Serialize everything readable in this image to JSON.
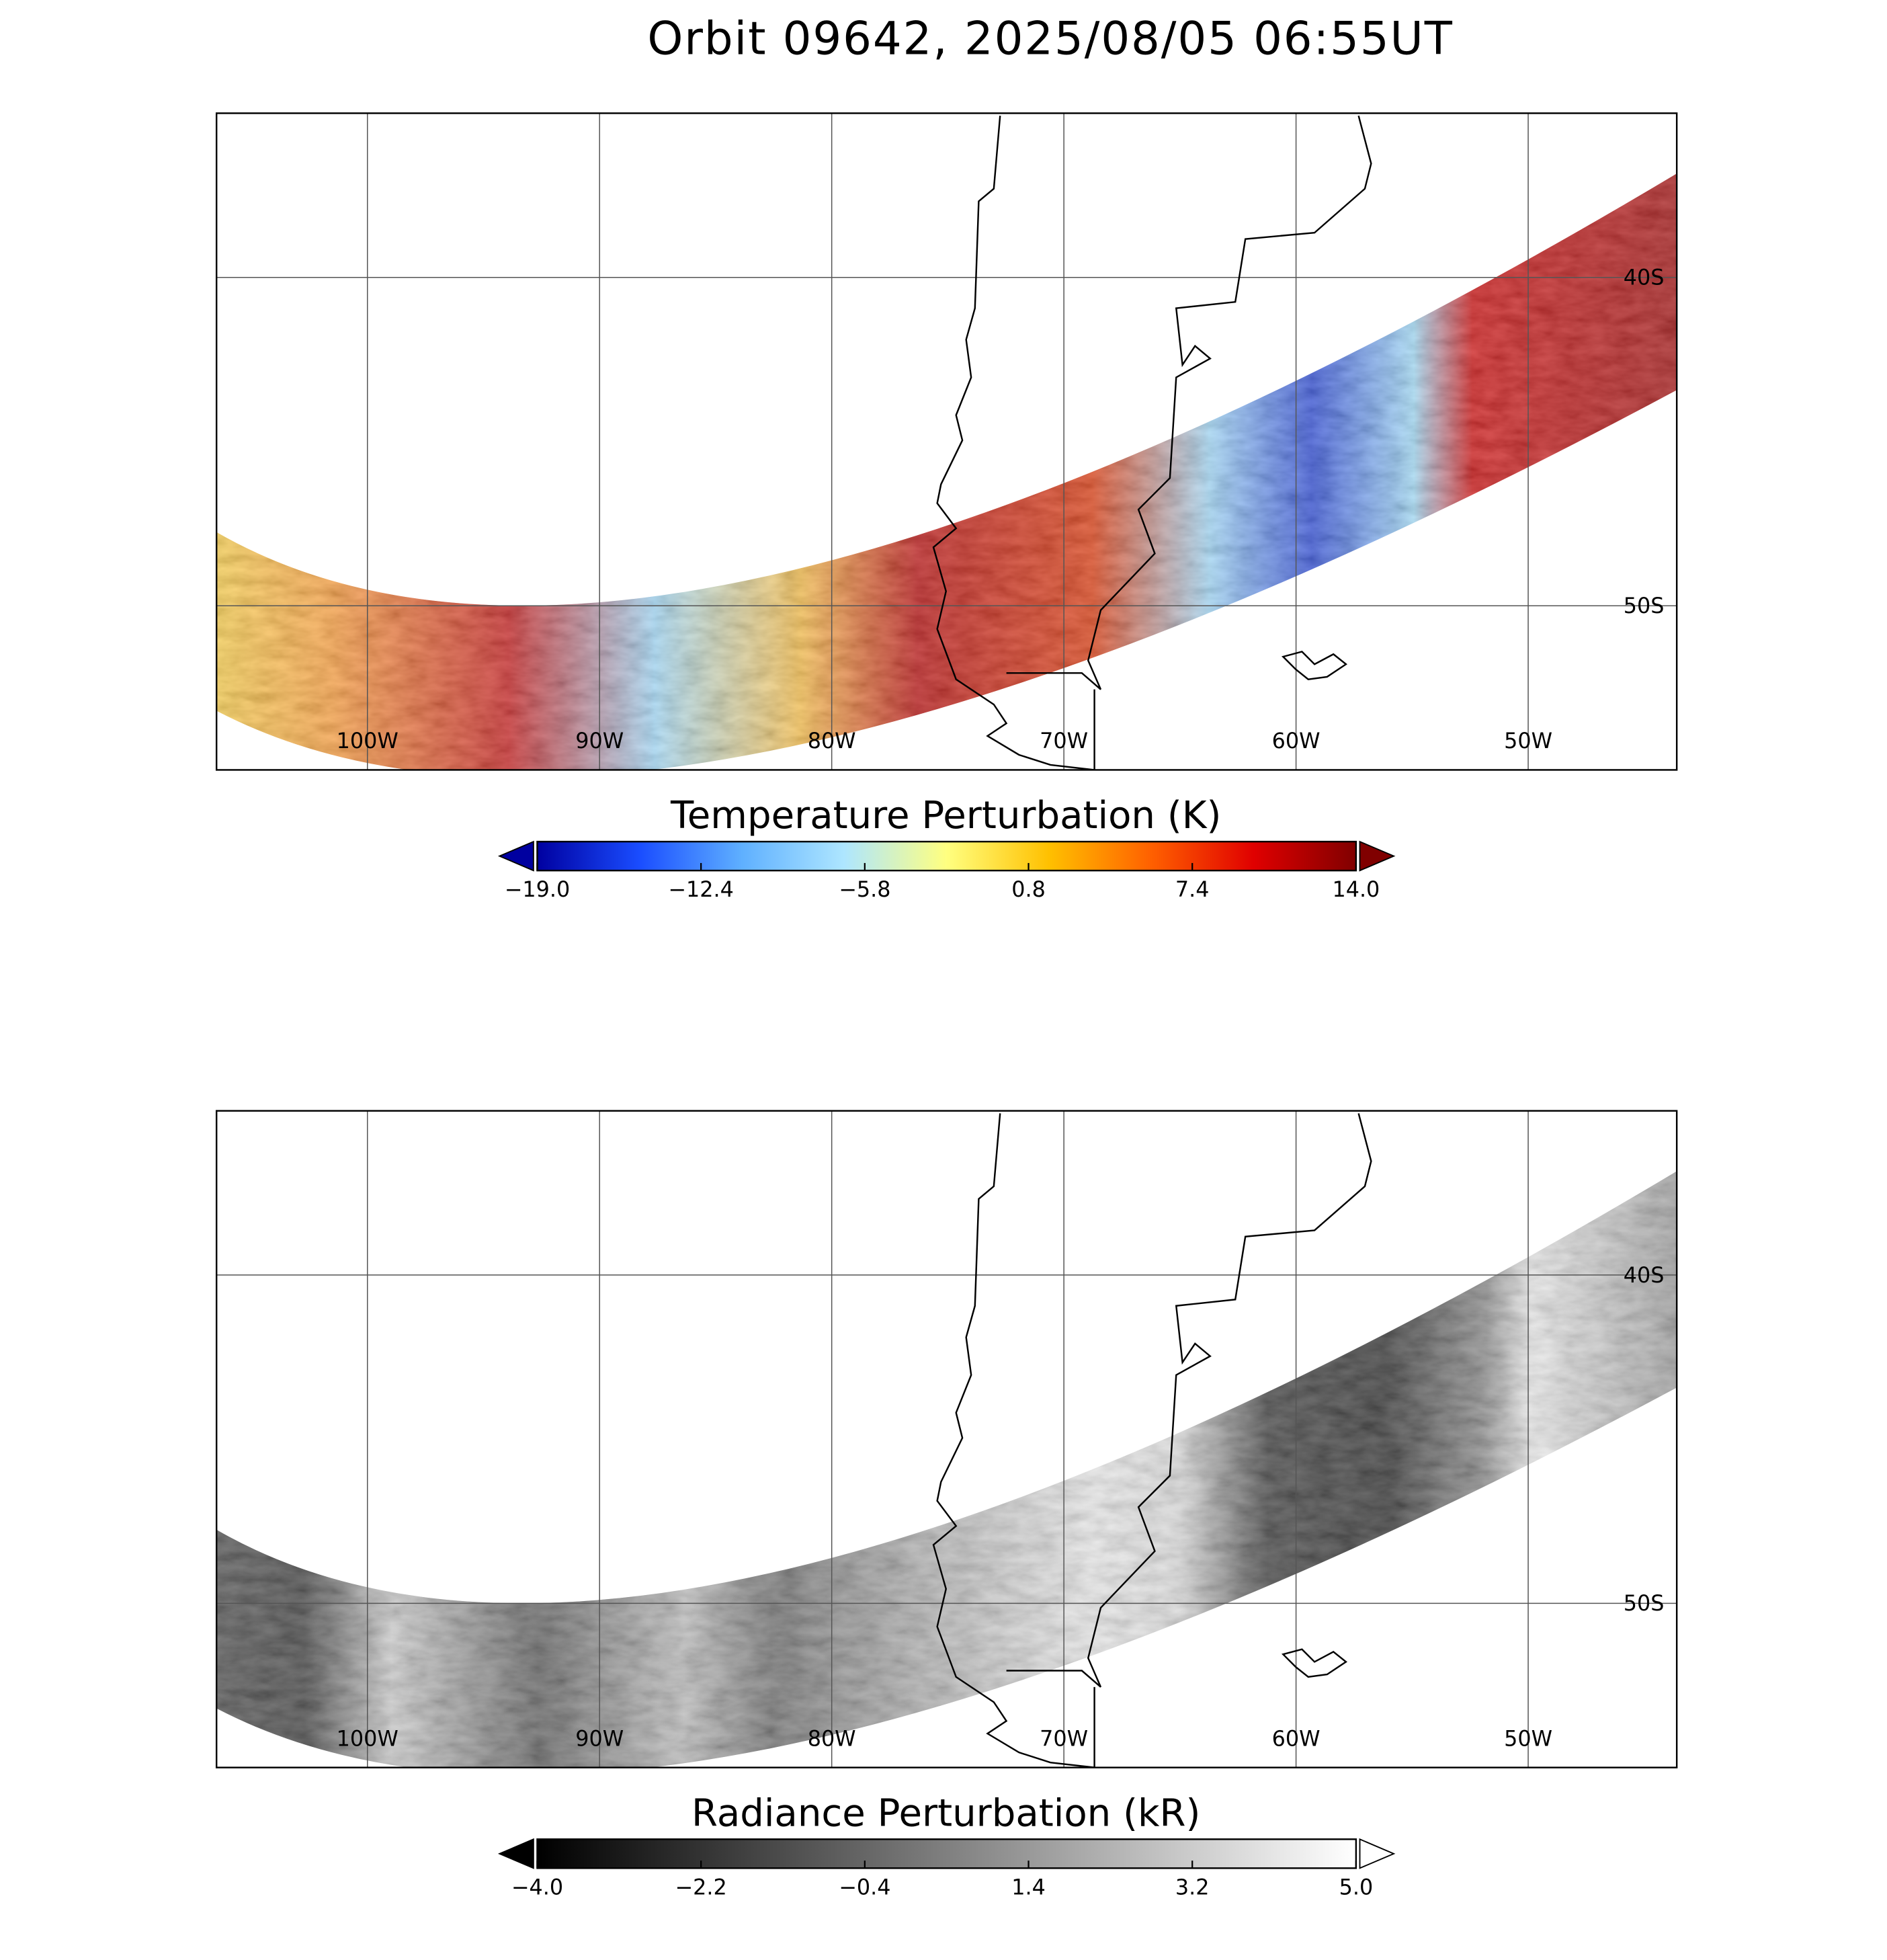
{
  "title": "Orbit 09642, 2025/08/05 06:55UT",
  "panels": [
    {
      "map": {
        "xlim": [
          -106.5,
          -43.6
        ],
        "ylim": [
          -55,
          -35
        ],
        "lon_ticks": [
          {
            "value": -100,
            "label": "100W"
          },
          {
            "value": -90,
            "label": "90W"
          },
          {
            "value": -80,
            "label": "80W"
          },
          {
            "value": -70,
            "label": "70W"
          },
          {
            "value": -60,
            "label": "60W"
          },
          {
            "value": -50,
            "label": "50W"
          }
        ],
        "lat_ticks": [
          {
            "value": -40,
            "label": "40S"
          },
          {
            "value": -50,
            "label": "50S"
          }
        ]
      },
      "colorbar": {
        "title": "Temperature Perturbation (K)",
        "lim": [
          -19,
          14
        ],
        "ticks": [
          {
            "value": -19,
            "label": "−19.0"
          },
          {
            "value": -12.4,
            "label": "−12.4"
          },
          {
            "value": -5.8,
            "label": "−5.8"
          },
          {
            "value": 0.8,
            "label": "0.8"
          },
          {
            "value": 7.4,
            "label": "7.4"
          },
          {
            "value": 14,
            "label": "14.0"
          }
        ],
        "colormap": [
          "#0000a0",
          "#1a4dff",
          "#5fb0ff",
          "#aee6ff",
          "#ffff80",
          "#ffc000",
          "#ff6000",
          "#e00000",
          "#800000"
        ]
      }
    },
    {
      "map": {
        "xlim": [
          -106.5,
          -43.6
        ],
        "ylim": [
          -55,
          -35
        ],
        "lon_ticks": [
          {
            "value": -100,
            "label": "100W"
          },
          {
            "value": -90,
            "label": "90W"
          },
          {
            "value": -80,
            "label": "80W"
          },
          {
            "value": -70,
            "label": "70W"
          },
          {
            "value": -60,
            "label": "60W"
          },
          {
            "value": -50,
            "label": "50W"
          }
        ],
        "lat_ticks": [
          {
            "value": -40,
            "label": "40S"
          },
          {
            "value": -50,
            "label": "50S"
          }
        ]
      },
      "colorbar": {
        "title": "Radiance Perturbation (kR)",
        "lim": [
          -4,
          5
        ],
        "ticks": [
          {
            "value": -4,
            "label": "−4.0"
          },
          {
            "value": -2.2,
            "label": "−2.2"
          },
          {
            "value": -0.4,
            "label": "−0.4"
          },
          {
            "value": 1.4,
            "label": "1.4"
          },
          {
            "value": 3.2,
            "label": "3.2"
          },
          {
            "value": 5,
            "label": "5.0"
          }
        ],
        "colormap": [
          "#000000",
          "#ffffff"
        ]
      }
    }
  ]
}
